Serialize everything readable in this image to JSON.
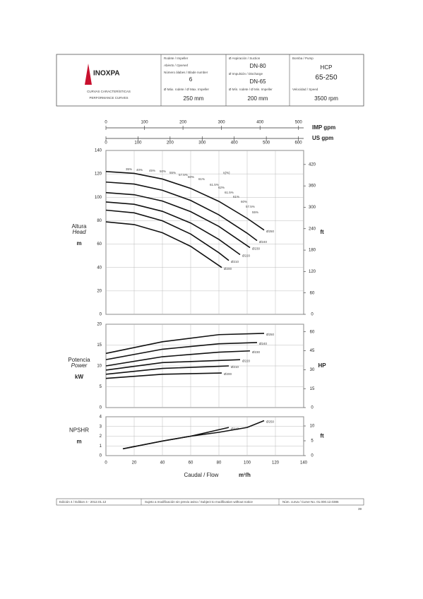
{
  "header": {
    "logo": "INOXPA",
    "subtitle_es": "CURVAS CARACTERÍSTICAS",
    "subtitle_en": "PERFORMANCE CURVES",
    "impeller_label": "Rodete / Impeller",
    "impeller_value": "Abierto / Opened",
    "blades_label": "Número álabes / Blade number",
    "blades_value": "6",
    "max_impeller_label": "Ø Máx. rodete / Ø Max. Impeller",
    "max_impeller_value": "250 mm",
    "suction_label": "Ø Aspiración / Suction",
    "suction_value": "DN-80",
    "discharge_label": "Ø Impulsión / Discharge",
    "discharge_value": "DN-65",
    "min_impeller_label": "Ø Mín. rodete / Ø Min. Impeller",
    "min_impeller_value": "200 mm",
    "pump_label": "Bomba / Pump",
    "pump_series": "HCP",
    "pump_model": "65-250",
    "speed_label": "Velocidad / Speed",
    "speed_value": "3500 rpm"
  },
  "footer": {
    "edition": "Edición 4 / Edition 4 - 2012.01.12",
    "notice": "Sujeto a modificación sin previo aviso / Subject to modification without notice",
    "curve_number": "Núm. curva / Curve No. 01.000.12.0386",
    "page": "39"
  },
  "chart_data": [
    {
      "type": "line",
      "ylabel": "Altura",
      "ylabel_en": "Head",
      "yunit": "m",
      "y2unit": "ft",
      "xlim": [
        0,
        140
      ],
      "xticks": [
        0,
        20,
        40,
        60,
        80,
        100,
        120,
        140
      ],
      "show_xtick_labels": false,
      "ylim": [
        0,
        140
      ],
      "yticks": [
        0,
        20,
        40,
        60,
        80,
        100,
        120,
        140
      ],
      "y2lim": [
        0,
        459.3
      ],
      "y2ticks": [
        0,
        60,
        120,
        180,
        240,
        300,
        360,
        420
      ],
      "grid": true,
      "top_axes": [
        {
          "label": "IMP gpm",
          "lim": [
            0,
            513.3
          ],
          "ticks": [
            0,
            100,
            200,
            300,
            400,
            500
          ]
        },
        {
          "label": "US gpm",
          "lim": [
            0,
            616.4
          ],
          "ticks": [
            0,
            100,
            200,
            300,
            400,
            500,
            600
          ]
        }
      ],
      "annotations": [
        "35%",
        "40%",
        "45%",
        "50%",
        "55%",
        "57.5%",
        "60%",
        "61%",
        "η(%)",
        "61.5%",
        "62%",
        "61.5%",
        "61%",
        "60%",
        "57.5%",
        "55%"
      ],
      "series": [
        {
          "name": "Ø250",
          "color": "#111",
          "x": [
            0,
            20,
            40,
            60,
            80,
            100,
            112
          ],
          "values": [
            122,
            120.4,
            115.6,
            107.6,
            96.5,
            82,
            72
          ]
        },
        {
          "name": "Ø240",
          "color": "#111",
          "x": [
            0,
            20,
            40,
            60,
            80,
            100,
            107
          ],
          "values": [
            113,
            111.3,
            106,
            97.3,
            85,
            69.3,
            63
          ]
        },
        {
          "name": "Ø230",
          "color": "#111",
          "x": [
            0,
            20,
            40,
            60,
            80,
            102
          ],
          "values": [
            104,
            102.2,
            96.8,
            87.7,
            75.1,
            57
          ]
        },
        {
          "name": "Ø220",
          "color": "#111",
          "x": [
            0,
            20,
            40,
            60,
            80,
            95
          ],
          "values": [
            96,
            94,
            88,
            78,
            64,
            51
          ]
        },
        {
          "name": "Ø210",
          "color": "#111",
          "x": [
            0,
            20,
            40,
            60,
            80,
            87
          ],
          "values": [
            89,
            86.7,
            79.9,
            68.6,
            52.6,
            46
          ]
        },
        {
          "name": "Ø200",
          "color": "#111",
          "x": [
            0,
            20,
            40,
            60,
            82
          ],
          "values": [
            79,
            76.7,
            69.7,
            58.1,
            40
          ]
        }
      ]
    },
    {
      "type": "line",
      "ylabel": "Potencia",
      "ylabel_en": "Power",
      "yunit": "kW",
      "y2unit": "HP",
      "xlim": [
        0,
        140
      ],
      "xticks": [
        0,
        20,
        40,
        60,
        80,
        100,
        120,
        140
      ],
      "show_xtick_labels": false,
      "ylim": [
        0,
        20
      ],
      "yticks": [
        0,
        5,
        10,
        15,
        20
      ],
      "y2lim": [
        0,
        66
      ],
      "y2ticks": [
        0,
        15,
        30,
        45,
        60
      ],
      "grid": true,
      "series": [
        {
          "name": "Ø250",
          "color": "#111",
          "x": [
            0,
            40,
            80,
            112
          ],
          "values": [
            13,
            15.8,
            17.5,
            17.8
          ]
        },
        {
          "name": "Ø240",
          "color": "#111",
          "x": [
            0,
            40,
            80,
            107
          ],
          "values": [
            11.5,
            14,
            15.3,
            15.6
          ]
        },
        {
          "name": "Ø230",
          "color": "#111",
          "x": [
            0,
            40,
            80,
            102
          ],
          "values": [
            10,
            12.2,
            13.3,
            13.6
          ]
        },
        {
          "name": "Ø220",
          "color": "#111",
          "x": [
            0,
            40,
            80,
            95
          ],
          "values": [
            9,
            10.8,
            11.3,
            11.5
          ]
        },
        {
          "name": "Ø210",
          "color": "#111",
          "x": [
            0,
            40,
            80,
            87
          ],
          "values": [
            8,
            9.4,
            9.9,
            10
          ]
        },
        {
          "name": "Ø200",
          "color": "#111",
          "x": [
            0,
            40,
            82
          ],
          "values": [
            7,
            8,
            8.3
          ]
        }
      ]
    },
    {
      "type": "line",
      "ylabel": "NPSHR",
      "yunit": "m",
      "y2unit": "ft",
      "xlabel": "Caudal / Flow",
      "xunit": "m³/h",
      "xlim": [
        0,
        140
      ],
      "xticks": [
        0,
        20,
        40,
        60,
        80,
        100,
        120,
        140
      ],
      "show_xtick_labels": true,
      "ylim": [
        0,
        4
      ],
      "yticks": [
        0,
        1,
        2,
        3,
        4
      ],
      "y2lim": [
        0,
        13.1
      ],
      "y2ticks": [
        0,
        5,
        10
      ],
      "grid": true,
      "series": [
        {
          "name": "Ø210",
          "color": "#111",
          "x": [
            12,
            40,
            60,
            87
          ],
          "values": [
            0.7,
            1.5,
            2.0,
            2.9
          ]
        },
        {
          "name": "Ø250",
          "color": "#111",
          "x": [
            12,
            40,
            60,
            80,
            100,
            112
          ],
          "values": [
            0.7,
            1.5,
            2.0,
            2.4,
            2.9,
            3.6
          ]
        }
      ]
    }
  ]
}
